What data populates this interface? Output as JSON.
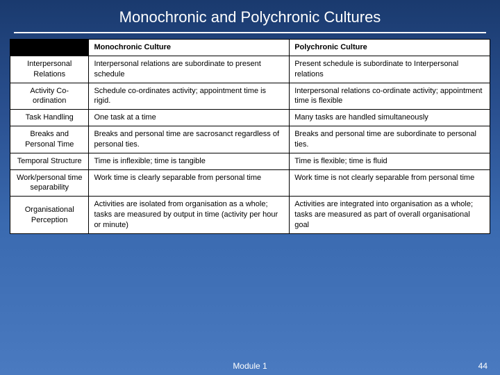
{
  "title": "Monochronic and Polychronic Cultures",
  "footer_module": "Module 1",
  "page_number": "44",
  "headers": {
    "mono": "Monochronic Culture",
    "poly": "Polychronic Culture"
  },
  "rows": [
    {
      "label": "Interpersonal Relations",
      "mono": "Interpersonal relations are subordinate to present schedule",
      "poly": "Present schedule is subordinate to Interpersonal relations"
    },
    {
      "label": "Activity Co-ordination",
      "mono": "Schedule co-ordinates activity; appointment time is rigid.",
      "poly": "Interpersonal relations co-ordinate activity; appointment time is flexible"
    },
    {
      "label": "Task Handling",
      "mono": "One task at a time",
      "poly": "Many tasks are handled simultaneously"
    },
    {
      "label": "Breaks and Personal Time",
      "mono": "Breaks and personal time are sacrosanct regardless of personal ties.",
      "poly": "Breaks and personal time are subordinate to personal ties."
    },
    {
      "label": "Temporal Structure",
      "mono": "Time is inflexible;\n time is tangible",
      "poly": "Time is flexible;\ntime is fluid"
    },
    {
      "label": "Work/personal time separability",
      "mono": "Work time is clearly separable from personal time",
      "poly": "Work time is not clearly separable from personal time"
    },
    {
      "label": "Organisational Perception",
      "mono": "Activities are isolated from organisation as a whole; tasks are measured by output in time (activity per hour or minute)",
      "poly": "Activities are integrated into organisation as a whole; tasks are measured as part of overall organisational goal"
    }
  ],
  "colors": {
    "bg_top": "#1a3a6e",
    "bg_bottom": "#4a7ac0",
    "text_white": "#ffffff",
    "table_bg": "#ffffff",
    "border": "#000000"
  }
}
